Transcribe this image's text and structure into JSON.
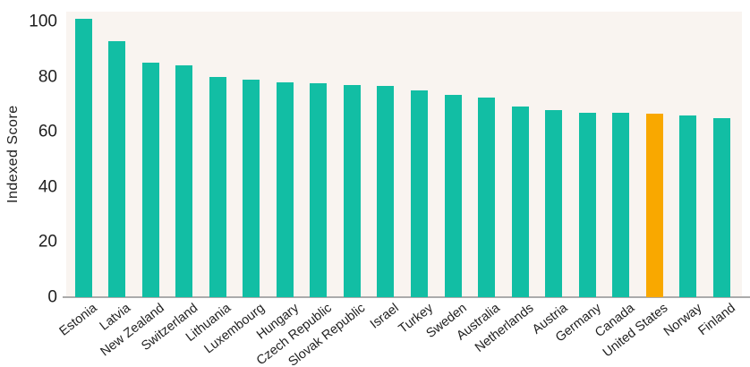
{
  "chart_data": {
    "type": "bar",
    "title": "",
    "xlabel": "",
    "ylabel": "Indexed Score",
    "categories": [
      "Estonia",
      "Latvia",
      "New Zealand",
      "Switzerland",
      "Lithuania",
      "Luxembourg",
      "Hungary",
      "Czech Republic",
      "Slovak Republic",
      "Israel",
      "Turkey",
      "Sweden",
      "Australia",
      "Netherlands",
      "Austria",
      "Germany",
      "Canada",
      "United States",
      "Norway",
      "Finland"
    ],
    "values": [
      101,
      93,
      85,
      84,
      80,
      79,
      78,
      77.5,
      77,
      76.5,
      75,
      73.5,
      72.5,
      69,
      68,
      67,
      67,
      66.5,
      66,
      65
    ],
    "highlight_category": "United States",
    "yticks": [
      0,
      20,
      40,
      60,
      80,
      100
    ],
    "ylim": [
      0,
      103.5
    ],
    "legend": "none",
    "grid": false,
    "colors": {
      "bar": "#12BEA4",
      "highlight": "#F9A800",
      "panel_background": "#F9F4F0",
      "page_background": "#FFFFFF",
      "axis_line": "#ABABAB",
      "text": "#1F1F1F"
    }
  }
}
